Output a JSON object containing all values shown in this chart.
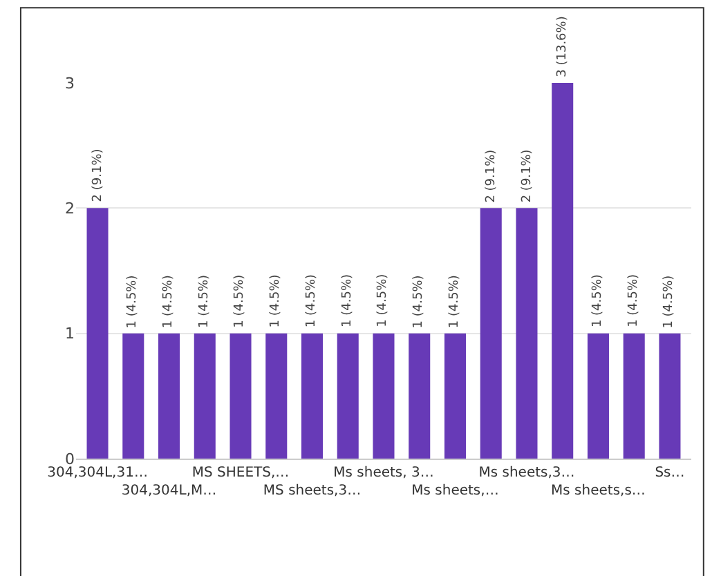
{
  "chart_data": {
    "type": "bar",
    "categories": [
      "304,304L,31…",
      null,
      "304,304L,M…",
      null,
      "MS SHEETS,…",
      null,
      "MS sheets,3…",
      null,
      "Ms sheets, 3…",
      null,
      "Ms sheets,…",
      null,
      "Ms sheets,3…",
      null,
      "Ms sheets,s…",
      null,
      "Ss…"
    ],
    "values": [
      2,
      1,
      1,
      1,
      1,
      1,
      1,
      1,
      1,
      1,
      1,
      2,
      2,
      3,
      1,
      1,
      1
    ],
    "value_labels": [
      "2 (9.1%)",
      "1 (4.5%)",
      "1 (4.5%)",
      "1 (4.5%)",
      "1 (4.5%)",
      "1 (4.5%)",
      "1 (4.5%)",
      "1 (4.5%)",
      "1 (4.5%)",
      "1 (4.5%)",
      "1 (4.5%)",
      "2 (9.1%)",
      "2 (9.1%)",
      "3 (13.6%)",
      "1 (4.5%)",
      "1 (4.5%)",
      "1 (4.5%)"
    ],
    "color": "#673ab7",
    "ylim": [
      0,
      3
    ],
    "yticks": [
      0,
      1,
      2,
      3
    ],
    "grid": "y"
  }
}
